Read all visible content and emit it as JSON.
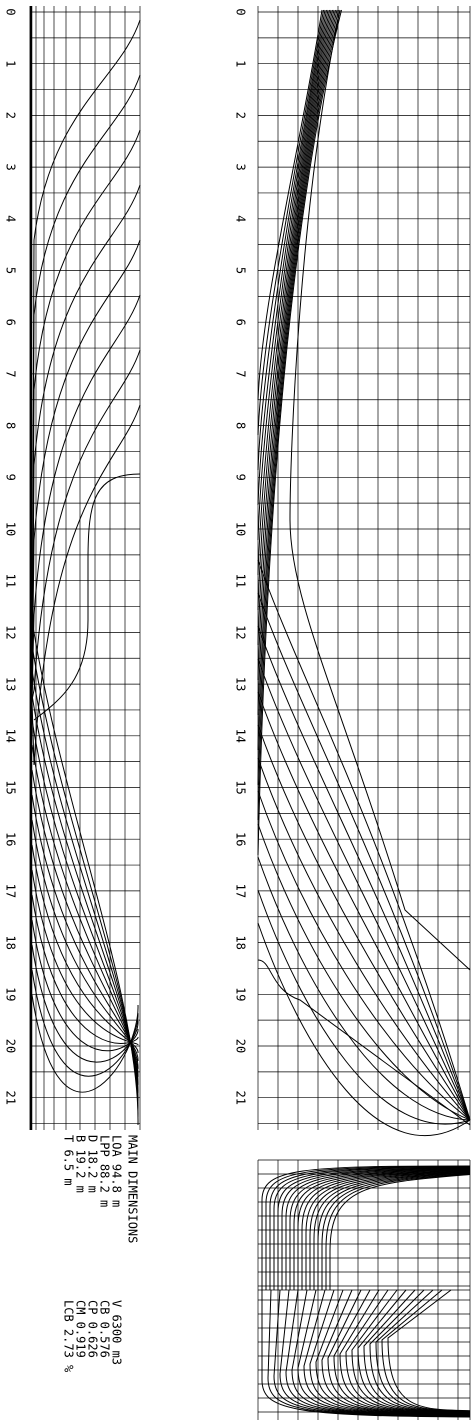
{
  "stations_top": [
    "0",
    "1",
    "2",
    "3",
    "4",
    "5",
    "6",
    "7",
    "8",
    "9",
    "10",
    "11",
    "12",
    "13",
    "14",
    "15",
    "16",
    "17",
    "18",
    "19",
    "20",
    "21"
  ],
  "stations_middle": [
    "0",
    "1",
    "2",
    "3",
    "4",
    "5",
    "6",
    "7",
    "8",
    "9",
    "10",
    "11",
    "12",
    "13",
    "14",
    "15",
    "16",
    "17",
    "18",
    "19",
    "20",
    "21"
  ],
  "dimensions": {
    "title": "MAIN DIMENSIONS",
    "left": [
      "LOA 94.8 m",
      "LPP 88.2 m",
      "D   18.2 m",
      "B   19.2 m",
      "T    6.5 m"
    ],
    "right": [
      "V     6300 m3",
      "CB    0.576",
      "CP    0.626",
      "CM    0.919",
      "LCB   2.73 %"
    ]
  }
}
